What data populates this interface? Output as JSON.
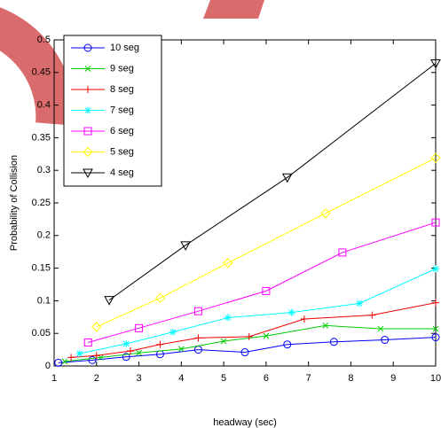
{
  "chart_data": {
    "type": "line",
    "xlabel": "headway (sec)",
    "ylabel": "Probability of Collision",
    "xlim": [
      1,
      10
    ],
    "ylim": [
      0,
      0.5
    ],
    "xticks": [
      1,
      2,
      3,
      4,
      5,
      6,
      7,
      8,
      9,
      10
    ],
    "yticks": [
      0,
      0.05,
      0.1,
      0.15,
      0.2,
      0.25,
      0.3,
      0.35,
      0.4,
      0.45,
      0.5
    ],
    "grid": false,
    "legend": "upper-left",
    "series": [
      {
        "name": "10 seg",
        "color": "#0000ff",
        "marker": "circle",
        "x": [
          1.1,
          1.9,
          2.7,
          3.5,
          4.4,
          5.5,
          6.5,
          7.6,
          8.8,
          10
        ],
        "values": [
          0.005,
          0.009,
          0.014,
          0.018,
          0.025,
          0.021,
          0.033,
          0.037,
          0.04,
          0.044
        ]
      },
      {
        "name": "9 seg",
        "color": "#00cc00",
        "marker": "x",
        "x": [
          1.25,
          2.1,
          3.0,
          4.0,
          5.0,
          6.0,
          7.4,
          8.7,
          10
        ],
        "values": [
          0.007,
          0.013,
          0.02,
          0.026,
          0.038,
          0.046,
          0.062,
          0.057,
          0.057
        ]
      },
      {
        "name": "8 seg",
        "color": "#ee0000",
        "marker": "plus",
        "x": [
          1.4,
          2.0,
          2.8,
          3.5,
          4.4,
          5.6,
          6.9,
          8.5,
          10
        ],
        "values": [
          0.013,
          0.016,
          0.023,
          0.033,
          0.043,
          0.045,
          0.072,
          0.078,
          0.097
        ]
      },
      {
        "name": "7 seg",
        "color": "#00ffff",
        "marker": "star",
        "x": [
          1.6,
          2.7,
          3.8,
          5.1,
          6.6,
          8.2,
          10
        ],
        "values": [
          0.019,
          0.034,
          0.052,
          0.074,
          0.082,
          0.096,
          0.149
        ]
      },
      {
        "name": "6 seg",
        "color": "#ff00ff",
        "marker": "square",
        "x": [
          1.8,
          3.0,
          4.4,
          6.0,
          7.8,
          10
        ],
        "values": [
          0.036,
          0.058,
          0.084,
          0.115,
          0.174,
          0.22
        ]
      },
      {
        "name": "5 seg",
        "color": "#ffff00",
        "marker": "diamond",
        "x": [
          2.0,
          3.5,
          5.1,
          7.4,
          10
        ],
        "values": [
          0.06,
          0.104,
          0.158,
          0.234,
          0.319
        ]
      },
      {
        "name": "4 seg",
        "color": "#000000",
        "marker": "triangle-down",
        "x": [
          2.3,
          4.1,
          6.5,
          10
        ],
        "values": [
          0.101,
          0.185,
          0.289,
          0.464
        ]
      }
    ]
  }
}
